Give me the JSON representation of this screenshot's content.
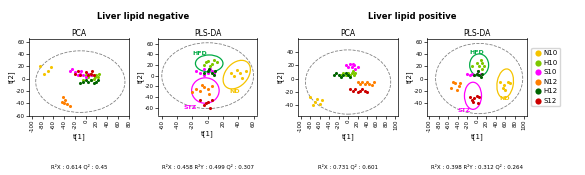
{
  "chart_data": [
    {
      "type": "scatter",
      "title": "PCA",
      "subtitle": "Liver lipid negative",
      "xlabel": "t[1]",
      "ylabel": "t[2]",
      "annotations": [
        "R²X : 0.614 Q² : 0.45"
      ],
      "xlim": [
        -105,
        80
      ],
      "ylim": [
        -60,
        65
      ],
      "xticks": [
        -100,
        -80,
        -60,
        -40,
        -20,
        0,
        20,
        40,
        60,
        80
      ],
      "yticks": [
        -60,
        -40,
        -20,
        0,
        20,
        40,
        60
      ],
      "series": [
        {
          "name": "N10",
          "color": "#f5c400",
          "values": [
            [
              -85,
              20
            ],
            [
              -70,
              12
            ],
            [
              -65,
              18
            ],
            [
              -78,
              8
            ]
          ]
        },
        {
          "name": "H10",
          "color": "#7dc700",
          "values": [
            [
              -5,
              -2
            ],
            [
              0,
              5
            ],
            [
              5,
              2
            ],
            [
              8,
              8
            ],
            [
              12,
              5
            ],
            [
              15,
              0
            ],
            [
              18,
              3
            ],
            [
              10,
              -3
            ],
            [
              20,
              5
            ],
            [
              25,
              8
            ],
            [
              22,
              2
            ]
          ]
        },
        {
          "name": "S10",
          "color": "#ff00ff",
          "values": [
            [
              -30,
              12
            ],
            [
              -25,
              15
            ],
            [
              -20,
              10
            ],
            [
              -15,
              5
            ],
            [
              -10,
              8
            ],
            [
              -8,
              12
            ],
            [
              -5,
              5
            ],
            [
              0,
              3
            ],
            [
              5,
              8
            ],
            [
              10,
              5
            ]
          ]
        },
        {
          "name": "N12",
          "color": "#ff7f00",
          "values": [
            [
              -40,
              -40
            ],
            [
              -35,
              -42
            ],
            [
              -45,
              -38
            ],
            [
              -30,
              -44
            ],
            [
              -38,
              -35
            ],
            [
              -42,
              -30
            ]
          ]
        },
        {
          "name": "H12",
          "color": "#006400",
          "values": [
            [
              -10,
              -8
            ],
            [
              -5,
              -5
            ],
            [
              0,
              -2
            ],
            [
              5,
              -5
            ],
            [
              10,
              -3
            ],
            [
              15,
              -8
            ],
            [
              20,
              -5
            ],
            [
              22,
              -2
            ]
          ]
        },
        {
          "name": "S12",
          "color": "#cc0000",
          "values": [
            [
              -20,
              8
            ],
            [
              -15,
              12
            ],
            [
              -10,
              5
            ],
            [
              0,
              10
            ],
            [
              5,
              5
            ],
            [
              10,
              8
            ],
            [
              15,
              5
            ],
            [
              12,
              12
            ]
          ]
        }
      ],
      "ellipses": [
        {
          "cx": -10,
          "cy": -5,
          "rx": 83,
          "ry": 50,
          "angle": 0,
          "line_style": "dashed"
        }
      ]
    },
    {
      "type": "scatter",
      "title": "PLS-DA",
      "subtitle": "Liver lipid negative",
      "xlabel": "t[1]",
      "ylabel": "t[2]",
      "annotations": [
        "R²X : 0.458 R²Y : 0.499 Q² : 0.307"
      ],
      "xlim": [
        -65,
        65
      ],
      "ylim": [
        -75,
        70
      ],
      "xticks": [
        -60,
        -40,
        -20,
        0,
        20,
        40,
        60
      ],
      "yticks": [
        -60,
        -40,
        -20,
        0,
        20,
        40,
        60
      ],
      "series": [
        {
          "name": "N10",
          "color": "#f5c400",
          "values": [
            [
              30,
              5
            ],
            [
              38,
              10
            ],
            [
              42,
              5
            ],
            [
              35,
              0
            ],
            [
              45,
              -5
            ],
            [
              50,
              8
            ]
          ]
        },
        {
          "name": "H10",
          "color": "#7dc700",
          "values": [
            [
              -5,
              20
            ],
            [
              0,
              28
            ],
            [
              5,
              22
            ],
            [
              8,
              30
            ],
            [
              12,
              25
            ],
            [
              -2,
              25
            ],
            [
              3,
              18
            ]
          ]
        },
        {
          "name": "S10",
          "color": "#ff00ff",
          "values": [
            [
              -15,
              8
            ],
            [
              -10,
              5
            ],
            [
              -5,
              2
            ],
            [
              0,
              5
            ],
            [
              5,
              8
            ],
            [
              8,
              5
            ],
            [
              3,
              12
            ],
            [
              -5,
              12
            ]
          ]
        },
        {
          "name": "N12",
          "color": "#ff7f00",
          "values": [
            [
              -15,
              -25
            ],
            [
              -20,
              -30
            ],
            [
              -10,
              -28
            ],
            [
              -5,
              -22
            ],
            [
              0,
              -25
            ],
            [
              5,
              -20
            ],
            [
              2,
              -35
            ],
            [
              -8,
              -18
            ]
          ]
        },
        {
          "name": "H12",
          "color": "#006400",
          "values": [
            [
              -5,
              5
            ],
            [
              0,
              8
            ],
            [
              5,
              5
            ],
            [
              8,
              2
            ],
            [
              2,
              12
            ],
            [
              10,
              8
            ]
          ]
        },
        {
          "name": "S12",
          "color": "#cc0000",
          "values": [
            [
              -10,
              -45
            ],
            [
              -5,
              -55
            ],
            [
              0,
              -50
            ],
            [
              5,
              -45
            ],
            [
              3,
              -60
            ],
            [
              -2,
              -52
            ]
          ]
        }
      ],
      "ellipses": [
        {
          "cx": 0,
          "cy": 0,
          "rx": 60,
          "ry": 62,
          "angle": 0,
          "line_style": "dashed"
        },
        {
          "cx": 2,
          "cy": 23,
          "rx": 18,
          "ry": 16,
          "angle": 0,
          "color": "#00aa44",
          "label": "HFD",
          "label_x": -20,
          "label_y": 42
        },
        {
          "cx": -3,
          "cy": -28,
          "rx": 18,
          "ry": 24,
          "angle": 0,
          "color": "#ff00ff",
          "label": "STZ",
          "label_x": -32,
          "label_y": -60
        },
        {
          "cx": 38,
          "cy": 2,
          "rx": 16,
          "ry": 28,
          "angle": -20,
          "color": "#f5c400",
          "label": "ND",
          "label_x": 28,
          "label_y": -30
        }
      ]
    },
    {
      "type": "scatter",
      "title": "PCA",
      "subtitle": "Liver lipid positive",
      "xlabel": "t[1]",
      "ylabel": "t[2]",
      "annotations": [
        "R²X : 0.731 Q² : 0.601"
      ],
      "xlim": [
        -105,
        105
      ],
      "ylim": [
        -55,
        60
      ],
      "xticks": [
        -100,
        -80,
        -60,
        -40,
        -20,
        0,
        20,
        40,
        60,
        80,
        100
      ],
      "yticks": [
        -40,
        -20,
        0,
        20,
        40
      ],
      "series": [
        {
          "name": "N10",
          "color": "#f5c400",
          "values": [
            [
              -70,
              -35
            ],
            [
              -60,
              -38
            ],
            [
              -65,
              -30
            ],
            [
              -55,
              -32
            ],
            [
              -75,
              -40
            ],
            [
              -80,
              -28
            ]
          ]
        },
        {
          "name": "H10",
          "color": "#7dc700",
          "values": [
            [
              -15,
              5
            ],
            [
              -10,
              8
            ],
            [
              -5,
              5
            ],
            [
              0,
              8
            ],
            [
              5,
              5
            ],
            [
              8,
              8
            ],
            [
              12,
              5
            ],
            [
              15,
              8
            ],
            [
              10,
              12
            ]
          ]
        },
        {
          "name": "S10",
          "color": "#ff00ff",
          "values": [
            [
              -5,
              20
            ],
            [
              0,
              18
            ],
            [
              5,
              22
            ],
            [
              8,
              18
            ],
            [
              12,
              20
            ],
            [
              15,
              15
            ],
            [
              10,
              22
            ],
            [
              20,
              18
            ]
          ]
        },
        {
          "name": "N12",
          "color": "#ff7f00",
          "values": [
            [
              20,
              -5
            ],
            [
              25,
              -8
            ],
            [
              30,
              -5
            ],
            [
              35,
              -8
            ],
            [
              40,
              -5
            ],
            [
              45,
              -8
            ],
            [
              50,
              -10
            ],
            [
              55,
              -5
            ]
          ]
        },
        {
          "name": "H12",
          "color": "#006400",
          "values": [
            [
              -30,
              5
            ],
            [
              -25,
              8
            ],
            [
              -20,
              5
            ],
            [
              -15,
              2
            ],
            [
              -10,
              5
            ],
            [
              -5,
              8
            ],
            [
              0,
              5
            ],
            [
              5,
              2
            ]
          ]
        },
        {
          "name": "S12",
          "color": "#cc0000",
          "values": [
            [
              5,
              -15
            ],
            [
              10,
              -18
            ],
            [
              15,
              -15
            ],
            [
              20,
              -20
            ],
            [
              25,
              -18
            ],
            [
              30,
              -15
            ],
            [
              35,
              -18
            ],
            [
              40,
              -20
            ]
          ]
        }
      ],
      "ellipses": [
        {
          "cx": 0,
          "cy": -5,
          "rx": 90,
          "ry": 48,
          "angle": 0,
          "line_style": "dashed"
        }
      ]
    },
    {
      "type": "scatter",
      "title": "PLS-DA",
      "subtitle": "Liver lipid positive",
      "xlabel": "t[1]",
      "ylabel": "t[2]",
      "annotations": [
        "R²X : 0.398 R²Y : 0.312 Q² : 0.264"
      ],
      "xlim": [
        -105,
        105
      ],
      "ylim": [
        -60,
        65
      ],
      "xticks": [
        -100,
        -80,
        -60,
        -40,
        -20,
        0,
        20,
        40,
        60,
        80,
        100
      ],
      "yticks": [
        -40,
        -20,
        0,
        20,
        40,
        60
      ],
      "legend": "center left",
      "series": [
        {
          "name": "N10",
          "color": "#f5c400",
          "values": [
            [
              50,
              -5
            ],
            [
              58,
              -10
            ],
            [
              65,
              -5
            ],
            [
              55,
              -15
            ],
            [
              70,
              -8
            ],
            [
              60,
              -18
            ]
          ]
        },
        {
          "name": "H10",
          "color": "#7dc700",
          "values": [
            [
              -10,
              20
            ],
            [
              0,
              25
            ],
            [
              5,
              20
            ],
            [
              10,
              25
            ],
            [
              15,
              20
            ],
            [
              8,
              30
            ],
            [
              12,
              15
            ]
          ]
        },
        {
          "name": "S10",
          "color": "#ff00ff",
          "values": [
            [
              -20,
              8
            ],
            [
              -15,
              5
            ],
            [
              -10,
              8
            ],
            [
              -5,
              5
            ],
            [
              0,
              8
            ],
            [
              5,
              5
            ],
            [
              8,
              8
            ],
            [
              3,
              12
            ]
          ]
        },
        {
          "name": "N12",
          "color": "#ff7f00",
          "values": [
            [
              -45,
              -8
            ],
            [
              -38,
              -12
            ],
            [
              -50,
              -5
            ],
            [
              -35,
              -8
            ],
            [
              -55,
              -15
            ],
            [
              -42,
              -18
            ]
          ]
        },
        {
          "name": "H12",
          "color": "#006400",
          "values": [
            [
              -5,
              5
            ],
            [
              0,
              8
            ],
            [
              5,
              5
            ],
            [
              8,
              2
            ],
            [
              2,
              12
            ],
            [
              10,
              8
            ]
          ]
        },
        {
          "name": "S12",
          "color": "#cc0000",
          "values": [
            [
              -15,
              -30
            ],
            [
              -10,
              -35
            ],
            [
              -5,
              -32
            ],
            [
              0,
              -28
            ],
            [
              -8,
              -38
            ],
            [
              5,
              -30
            ],
            [
              2,
              -40
            ]
          ]
        }
      ],
      "ellipses": [
        {
          "cx": 5,
          "cy": 0,
          "rx": 92,
          "ry": 57,
          "angle": 0,
          "line_style": "dashed"
        },
        {
          "cx": 5,
          "cy": 22,
          "rx": 20,
          "ry": 18,
          "angle": 0,
          "color": "#00aa44",
          "label": "HFD",
          "label_x": -15,
          "label_y": 43
        },
        {
          "cx": -8,
          "cy": -28,
          "rx": 18,
          "ry": 22,
          "angle": 0,
          "color": "#ff00ff",
          "label": "STZ",
          "label_x": -40,
          "label_y": -52
        },
        {
          "cx": 60,
          "cy": -8,
          "rx": 17,
          "ry": 24,
          "angle": -15,
          "color": "#f5c400",
          "label": "ND",
          "label_x": 48,
          "label_y": -32
        }
      ]
    }
  ]
}
